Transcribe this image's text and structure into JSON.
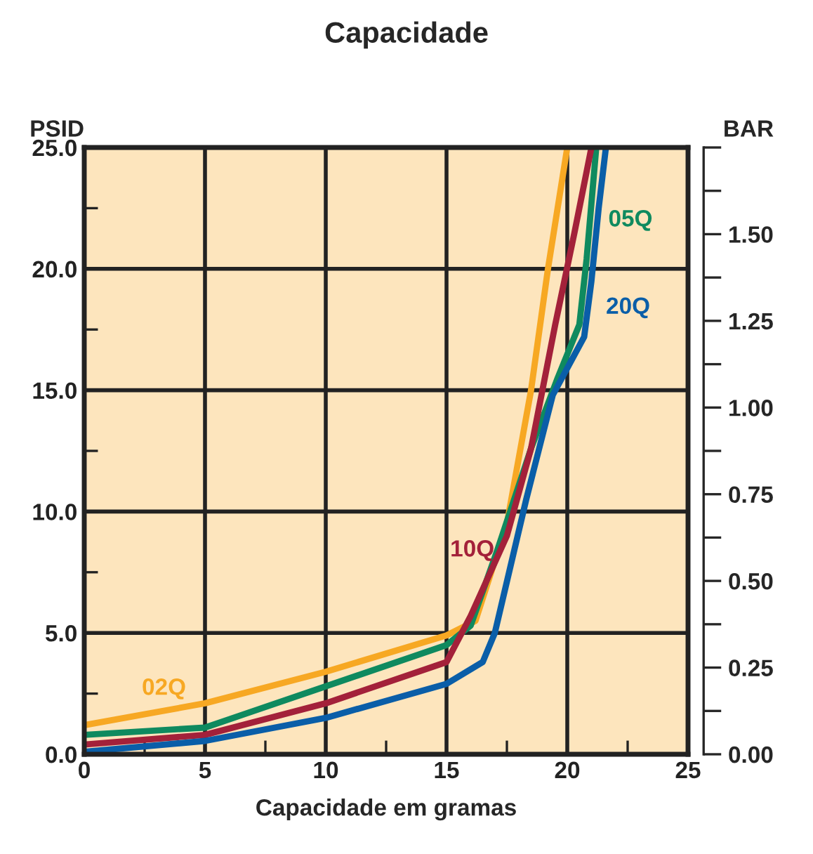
{
  "chart_data": {
    "type": "line",
    "title": "Capacidade",
    "xlabel": "Capacidade em gramas",
    "ylabel": "PSID",
    "y2label": "BAR",
    "xlim": [
      0,
      25
    ],
    "ylim": [
      0,
      25
    ],
    "y2lim": [
      0,
      1.75
    ],
    "xticks": [
      0,
      {
        "value": 2.5,
        "label": null
      },
      5,
      {
        "value": 7.5,
        "label": null
      },
      10,
      {
        "value": 12.5,
        "label": null
      },
      15,
      {
        "value": 17.5,
        "label": null
      },
      20,
      {
        "value": 22.5,
        "label": null
      },
      25
    ],
    "yticks": [
      {
        "value": 0,
        "label": "0.0"
      },
      {
        "value": 2.5,
        "label": null
      },
      {
        "value": 5,
        "label": "5.0"
      },
      {
        "value": 7.5,
        "label": null
      },
      {
        "value": 10,
        "label": "10.0"
      },
      {
        "value": 12.5,
        "label": null
      },
      {
        "value": 15,
        "label": "15.0"
      },
      {
        "value": 17.5,
        "label": null
      },
      {
        "value": 20,
        "label": "20.0"
      },
      {
        "value": 22.5,
        "label": null
      },
      {
        "value": 25,
        "label": "25.0"
      }
    ],
    "y2ticks": [
      {
        "value": 0,
        "label": "0.00"
      },
      {
        "value": 0.125,
        "label": null
      },
      {
        "value": 0.25,
        "label": "0.25"
      },
      {
        "value": 0.375,
        "label": null
      },
      {
        "value": 0.5,
        "label": "0.50"
      },
      {
        "value": 0.625,
        "label": null
      },
      {
        "value": 0.75,
        "label": "0.75"
      },
      {
        "value": 0.875,
        "label": null
      },
      {
        "value": 1.0,
        "label": "1.00"
      },
      {
        "value": 1.125,
        "label": null
      },
      {
        "value": 1.25,
        "label": "1.25"
      },
      {
        "value": 1.375,
        "label": null
      },
      {
        "value": 1.5,
        "label": "1.50"
      },
      {
        "value": 1.625,
        "label": null
      },
      {
        "value": 1.75,
        "label": null
      }
    ],
    "grid": true,
    "legend": false,
    "line_style": "solid",
    "marker": "none",
    "series": [
      {
        "name": "02Q",
        "color": "#f7a823",
        "x": [
          0,
          5,
          10,
          15,
          16.2,
          17.5,
          18.5,
          19.2,
          20.0
        ],
        "values": [
          1.2,
          2.1,
          3.4,
          4.9,
          5.5,
          9.5,
          15,
          20,
          25
        ]
      },
      {
        "name": "05Q",
        "color": "#0f8a5f",
        "x": [
          0,
          5,
          10,
          15,
          16.0,
          17.1,
          18.5,
          19.6,
          20.5,
          20.8,
          21.2
        ],
        "values": [
          0.8,
          1.1,
          2.8,
          4.5,
          5.3,
          8.4,
          12.6,
          15.5,
          17.7,
          20.4,
          25
        ]
      },
      {
        "name": "10Q",
        "color": "#a3213a",
        "x": [
          0,
          5,
          10,
          15,
          16.0,
          17.5,
          18.5,
          19.5,
          20.3,
          21.0
        ],
        "values": [
          0.4,
          0.8,
          2.1,
          3.8,
          5.7,
          9.0,
          12.6,
          17.7,
          21.5,
          25
        ]
      },
      {
        "name": "20Q",
        "color": "#0a5ea8",
        "x": [
          0,
          5,
          10,
          15,
          16.5,
          17.0,
          18.3,
          19.4,
          20.7,
          21.0,
          21.3,
          21.6
        ],
        "values": [
          0.1,
          0.55,
          1.5,
          2.9,
          3.8,
          5.0,
          10.5,
          14.8,
          17.2,
          19.5,
          22.5,
          25
        ]
      }
    ]
  }
}
